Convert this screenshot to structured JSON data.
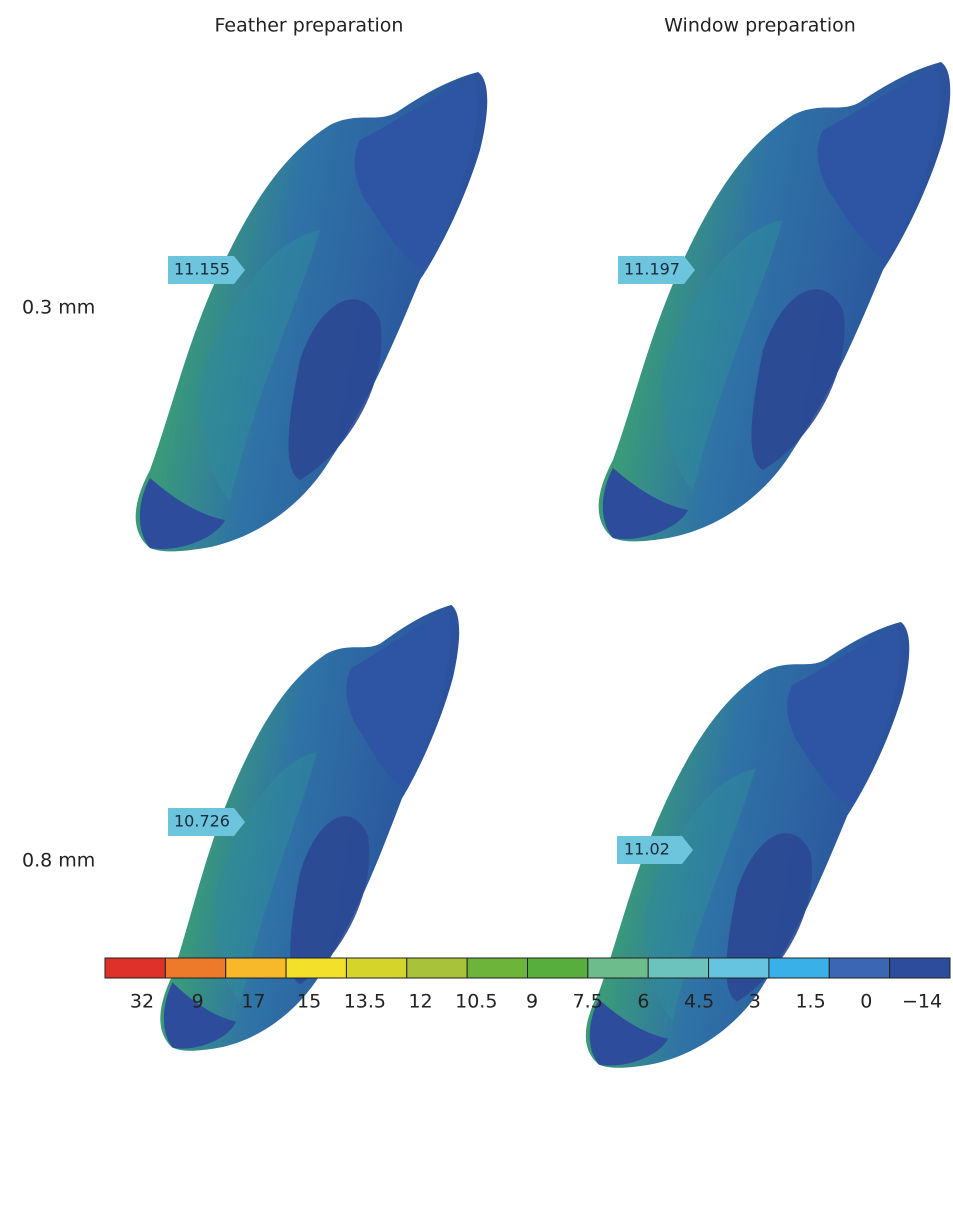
{
  "columns": [
    "Feather preparation",
    "Window preparation"
  ],
  "rows": [
    {
      "label": "0.3 mm",
      "panels": [
        {
          "callout": "11.155"
        },
        {
          "callout": "11.197"
        }
      ]
    },
    {
      "label": "0.8 mm",
      "panels": [
        {
          "callout": "10.726"
        },
        {
          "callout": "11.02"
        }
      ]
    }
  ],
  "scale": {
    "colors": [
      "#e0302a",
      "#ec7a2a",
      "#f7b92a",
      "#f2e02a",
      "#d4d42a",
      "#a8c23a",
      "#6cb43a",
      "#58ae3c",
      "#6cbc8c",
      "#6cc2bc",
      "#66c4e0",
      "#3ab0e8",
      "#3a66b4",
      "#2e4c9c"
    ],
    "labels": [
      "32",
      "9",
      "17",
      "15",
      "13.5",
      "12",
      "10.5",
      "9",
      "7.5",
      "6",
      "4.5",
      "3",
      "1.5",
      "0",
      "−14"
    ]
  }
}
